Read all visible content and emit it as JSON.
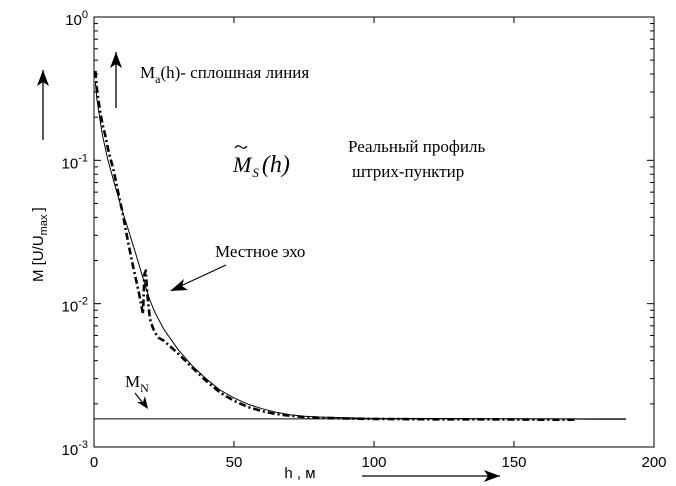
{
  "chart_data": {
    "type": "line",
    "xlabel": "h , м",
    "ylabel": "M [U/U",
    "ylabel_sub": "max",
    "ylabel_close": "]",
    "xlim": [
      0,
      200
    ],
    "ylim": [
      0.001,
      1
    ],
    "yscale": "log",
    "grid": false,
    "x_ticks": [
      0,
      50,
      100,
      150,
      200
    ],
    "x_tick_labels": [
      "0",
      "50",
      "100",
      "150",
      "200"
    ],
    "y_ticks": [
      0.001,
      0.01,
      0.1,
      1
    ],
    "y_tick_base": "10",
    "y_tick_exps": [
      "-3",
      "-2",
      "-1",
      "0"
    ],
    "series": [
      {
        "style": "solid",
        "x": [
          0.5,
          1,
          2,
          3,
          5,
          7,
          10,
          12,
          15,
          18,
          20,
          22,
          25,
          30,
          35,
          40,
          45,
          50,
          55,
          60,
          65,
          70,
          75,
          80,
          90,
          100,
          120,
          140,
          160,
          180,
          190
        ],
        "y": [
          0.35,
          0.27,
          0.2,
          0.15,
          0.1,
          0.072,
          0.045,
          0.034,
          0.022,
          0.014,
          0.0105,
          0.0085,
          0.0066,
          0.0048,
          0.0037,
          0.003,
          0.0025,
          0.0022,
          0.00199,
          0.00185,
          0.00175,
          0.00168,
          0.00164,
          0.00162,
          0.0016,
          0.00158,
          0.00158,
          0.00157,
          0.00157,
          0.00156,
          0.00156
        ]
      },
      {
        "style": "dash-dot",
        "x": [
          0.5,
          1,
          2,
          3,
          4,
          5,
          7,
          9,
          10,
          12,
          14,
          16,
          17,
          17.5,
          18,
          18.5,
          19,
          19.5,
          20,
          21,
          22,
          23,
          25,
          30,
          35,
          40,
          45,
          50,
          55,
          60,
          65,
          70,
          75,
          80,
          90,
          100,
          120,
          140,
          160,
          172
        ],
        "y": [
          0.42,
          0.32,
          0.23,
          0.18,
          0.15,
          0.12,
          0.085,
          0.055,
          0.045,
          0.028,
          0.018,
          0.012,
          0.0095,
          0.0085,
          0.016,
          0.017,
          0.012,
          0.0095,
          0.0078,
          0.0068,
          0.0062,
          0.0058,
          0.0055,
          0.0045,
          0.0036,
          0.0029,
          0.0024,
          0.0021,
          0.0019,
          0.00178,
          0.0017,
          0.00165,
          0.00162,
          0.0016,
          0.00158,
          0.00157,
          0.00156,
          0.00156,
          0.00155,
          0.00155
        ]
      },
      {
        "style": "solid-flat",
        "x": [
          0,
          190
        ],
        "y": [
          0.00157,
          0.00157
        ]
      }
    ],
    "annotations": {
      "ma_label": "M",
      "ma_sub": "a",
      "ma_rest": "(h)- сплошная линия",
      "ms_label": "M",
      "ms_sub": "S",
      "ms_rest": "(h)",
      "real_profile_1": "Реальный профиль",
      "real_profile_2": "штрих-пунктир",
      "local_echo": "Местное эхо",
      "mn_label": "M",
      "mn_sub": "N"
    }
  }
}
